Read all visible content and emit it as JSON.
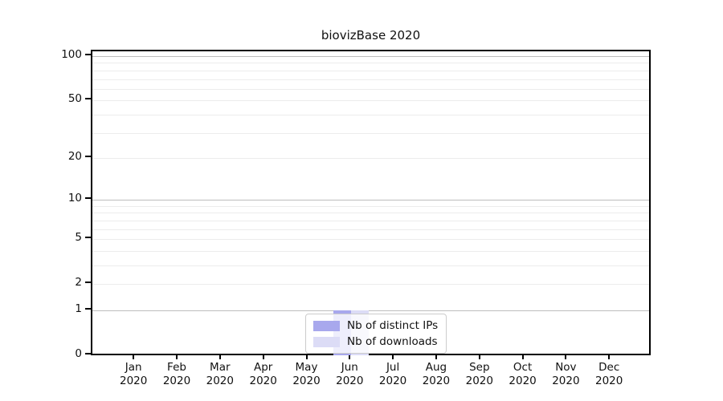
{
  "chart_data": {
    "type": "bar",
    "title": "biovizBase 2020",
    "categories": [
      "Jan 2020",
      "Feb 2020",
      "Mar 2020",
      "Apr 2020",
      "May 2020",
      "Jun 2020",
      "Jul 2020",
      "Aug 2020",
      "Sep 2020",
      "Oct 2020",
      "Nov 2020",
      "Dec 2020"
    ],
    "series": [
      {
        "name": "Nb of distinct IPs",
        "color": "#a8a8ed",
        "values": [
          0,
          0,
          0,
          0,
          0,
          1,
          0,
          0,
          0,
          0,
          0,
          0
        ]
      },
      {
        "name": "Nb of downloads",
        "color": "#dcdcf6",
        "values": [
          0,
          0,
          0,
          0,
          0,
          1,
          0,
          0,
          0,
          0,
          0,
          0
        ]
      }
    ],
    "xlabel": "",
    "ylabel": "",
    "yscale": "log1p",
    "yticks": [
      0,
      1,
      2,
      5,
      10,
      20,
      50,
      100
    ],
    "ylim": [
      0,
      110
    ],
    "grid": "both",
    "legend_position": "lower center",
    "colors": {
      "axis": "#000000",
      "major_grid": "#bdbdbd",
      "minor_grid": "#ececec",
      "legend_border": "#cccccc"
    }
  }
}
